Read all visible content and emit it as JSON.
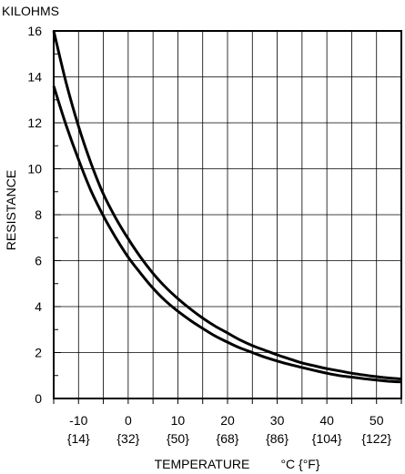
{
  "chart_data": {
    "type": "line",
    "ylabel_top": "KILOHMS",
    "ylabel": "RESISTANCE",
    "xlabel": "TEMPERATURE",
    "xunit": "°C {°F}",
    "xlim": [
      -15,
      55
    ],
    "ylim": [
      0,
      16
    ],
    "x_grid_step": 5,
    "y_minor_step": 1,
    "grid": true,
    "x_ticks": [
      {
        "value": -10,
        "c": "-10",
        "f": "{14}"
      },
      {
        "value": 0,
        "c": "0",
        "f": "{32}"
      },
      {
        "value": 10,
        "c": "10",
        "f": "{50}"
      },
      {
        "value": 20,
        "c": "20",
        "f": "{68}"
      },
      {
        "value": 30,
        "c": "30",
        "f": "{86}"
      },
      {
        "value": 40,
        "c": "40",
        "f": "{104}"
      },
      {
        "value": 50,
        "c": "50",
        "f": "{122}"
      }
    ],
    "y_ticks": [
      {
        "value": 0,
        "label": "0"
      },
      {
        "value": 2,
        "label": "2"
      },
      {
        "value": 4,
        "label": "4"
      },
      {
        "value": 6,
        "label": "6"
      },
      {
        "value": 8,
        "label": "8"
      },
      {
        "value": 10,
        "label": "10"
      },
      {
        "value": 12,
        "label": "12"
      },
      {
        "value": 14,
        "label": "14"
      },
      {
        "value": 16,
        "label": "16"
      }
    ],
    "series": [
      {
        "x": [
          -15,
          -12.5,
          -10,
          -7.5,
          -5,
          -2.5,
          0,
          2.5,
          5,
          7.5,
          10,
          12.5,
          15,
          17.5,
          20,
          22.5,
          25,
          27.5,
          30,
          32.5,
          35,
          37.5,
          40,
          42.5,
          45,
          47.5,
          50,
          52.5,
          55
        ],
        "y": [
          16.0,
          13.75,
          11.85,
          10.25,
          8.9,
          7.85,
          6.95,
          6.15,
          5.45,
          4.85,
          4.35,
          3.9,
          3.5,
          3.15,
          2.85,
          2.55,
          2.3,
          2.1,
          1.9,
          1.72,
          1.55,
          1.42,
          1.3,
          1.2,
          1.1,
          1.02,
          0.95,
          0.89,
          0.85
        ]
      },
      {
        "x": [
          -15,
          -12.5,
          -10,
          -7.5,
          -5,
          -2.5,
          0,
          2.5,
          5,
          7.5,
          10,
          12.5,
          15,
          17.5,
          20,
          22.5,
          25,
          27.5,
          30,
          32.5,
          35,
          37.5,
          40,
          42.5,
          45,
          47.5,
          50,
          52.5,
          55
        ],
        "y": [
          13.6,
          11.9,
          10.4,
          9.05,
          7.95,
          7.0,
          6.15,
          5.45,
          4.8,
          4.25,
          3.8,
          3.4,
          3.05,
          2.72,
          2.45,
          2.2,
          2.0,
          1.8,
          1.63,
          1.48,
          1.35,
          1.22,
          1.1,
          1.0,
          0.93,
          0.86,
          0.8,
          0.75,
          0.72
        ]
      }
    ],
    "colors": {
      "line": "#000000",
      "grid": "#000000"
    }
  }
}
